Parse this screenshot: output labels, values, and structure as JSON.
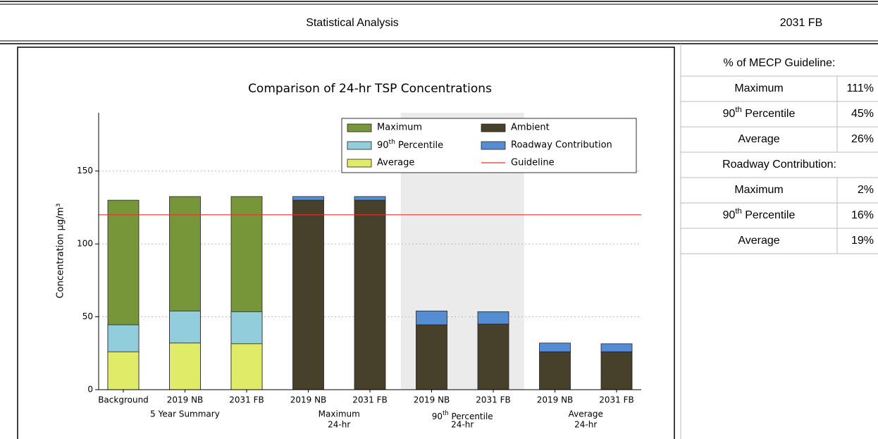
{
  "header": {
    "title": "Statistical Analysis",
    "scenario": "2031 FB"
  },
  "chart_data": {
    "type": "bar",
    "title": "Comparison of 24-hr TSP Concentrations",
    "y_label": "Concentration µg/m³",
    "categories": [
      "Background",
      "2019 NB",
      "2031 FB",
      "2019 NB",
      "2031 FB",
      "2019 NB",
      "2031 FB",
      "2019 NB",
      "2031 FB"
    ],
    "groups": [
      {
        "label": [
          "5 Year Summary"
        ],
        "size": 3
      },
      {
        "label": [
          "Maximum",
          "24-hr"
        ],
        "size": 2
      },
      {
        "label": [
          "90th Percentile",
          "24-hr"
        ],
        "size": 2,
        "shaded": true
      },
      {
        "label": [
          "Average",
          "24-hr"
        ],
        "size": 2
      }
    ],
    "series": [
      {
        "name": "Maximum",
        "color": "#77963a",
        "values": [
          130,
          132.5,
          132.5,
          null,
          null,
          null,
          null,
          null,
          null
        ]
      },
      {
        "name": "90th Percentile",
        "color": "#92cddc",
        "values": [
          44.5,
          54,
          53.5,
          null,
          null,
          null,
          null,
          null,
          null
        ]
      },
      {
        "name": "Average",
        "color": "#e0eb68",
        "values": [
          26,
          32,
          31.5,
          null,
          null,
          null,
          null,
          null,
          null
        ]
      },
      {
        "name": "Ambient",
        "color": "#47402a",
        "values": [
          null,
          null,
          null,
          130,
          130,
          44.5,
          45,
          26,
          26
        ]
      },
      {
        "name": "Roadway Contribution",
        "color": "#548dd4",
        "stack_on": 3,
        "values": [
          null,
          null,
          null,
          2.5,
          2.5,
          9.5,
          8.5,
          6,
          5.5
        ]
      }
    ],
    "reference_lines": [
      {
        "name": "Guideline",
        "value": 120,
        "color": "#e8302a"
      }
    ],
    "ylim": [
      0,
      190
    ],
    "yticks": [
      0,
      50,
      100,
      150
    ],
    "grid": true,
    "legend": "upper right"
  },
  "table": {
    "sections": [
      {
        "title": "% of MECP Guideline:",
        "rows": [
          {
            "label": "Maximum",
            "value": "111%",
            "color": "#e8302a"
          },
          {
            "label": "90th Percentile",
            "value": "45%"
          },
          {
            "label": "Average",
            "value": "26%"
          }
        ]
      },
      {
        "title": "Roadway Contribution:",
        "rows": [
          {
            "label": "Maximum",
            "value": "2%"
          },
          {
            "label": "90th Percentile",
            "value": "16%"
          },
          {
            "label": "Average",
            "value": "19%"
          }
        ]
      }
    ]
  }
}
